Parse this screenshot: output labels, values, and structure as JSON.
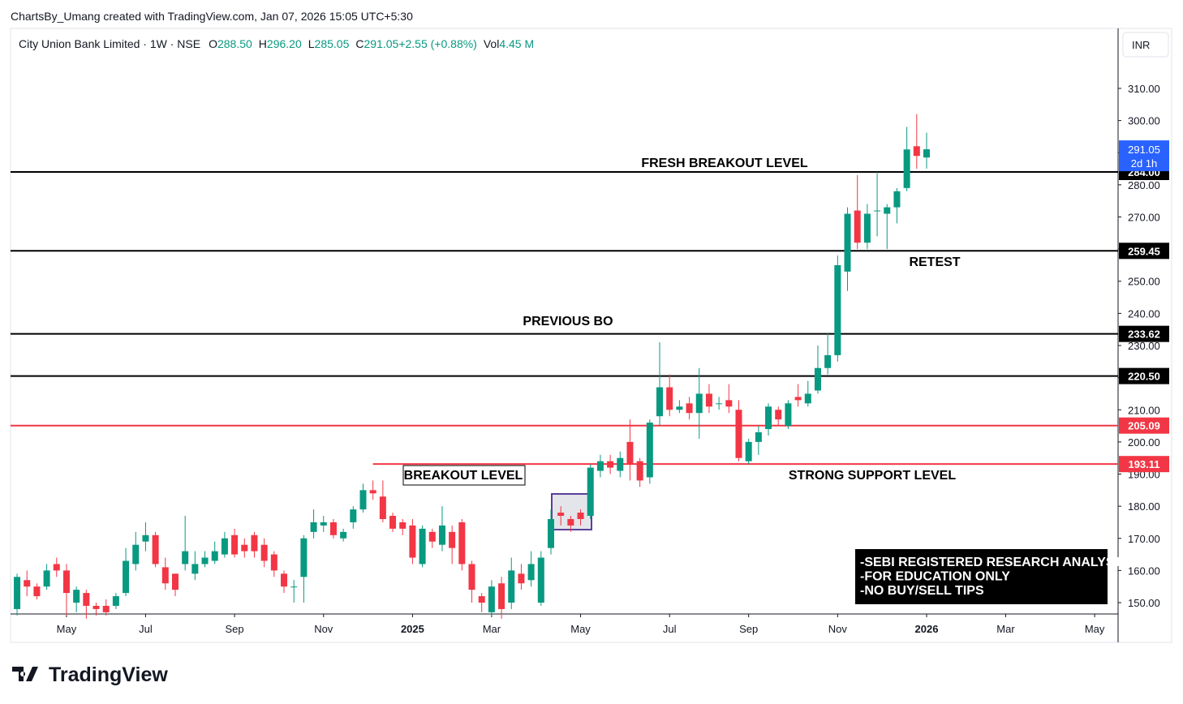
{
  "header": {
    "credit": "ChartsBy_Umang created with TradingView.com, Jan 07, 2026 15:05 UTC+5:30"
  },
  "legend": {
    "symbol": "City Union Bank Limited · 1W · NSE",
    "items": [
      {
        "key": "O",
        "value": "288.50"
      },
      {
        "key": "H",
        "value": "296.20"
      },
      {
        "key": "L",
        "value": "285.05"
      },
      {
        "key": "C",
        "value": "291.05"
      },
      {
        "key": "",
        "value": "+2.55 (+0.88%)"
      },
      {
        "key": "Vol",
        "value": "4.45 M"
      }
    ]
  },
  "currency": "INR",
  "footer": {
    "brand": "TradingView"
  },
  "chart_data": {
    "type": "candlestick",
    "up_color": "#089981",
    "down_color": "#f23645",
    "xlim": [
      -0.66,
      111.37
    ],
    "xticks": [
      {
        "value": 5,
        "label": "May"
      },
      {
        "value": 13,
        "label": "Jul"
      },
      {
        "value": 22,
        "label": "Sep"
      },
      {
        "value": 31,
        "label": "Nov"
      },
      {
        "value": 40,
        "label": "2025"
      },
      {
        "value": 48,
        "label": "Mar"
      },
      {
        "value": 57,
        "label": "May"
      },
      {
        "value": 66,
        "label": "Jul"
      },
      {
        "value": 74,
        "label": "Sep"
      },
      {
        "value": 83,
        "label": "Nov"
      },
      {
        "value": 92,
        "label": "2026"
      },
      {
        "value": 100,
        "label": "Mar"
      },
      {
        "value": 109,
        "label": "May"
      }
    ],
    "ylim": [
      146.47,
      328.67
    ],
    "yticks": [
      {
        "value": 150,
        "label": "150.00"
      },
      {
        "value": 160,
        "label": "160.00"
      },
      {
        "value": 170,
        "label": "170.00"
      },
      {
        "value": 180,
        "label": "180.00"
      },
      {
        "value": 190,
        "label": "190.00"
      },
      {
        "value": 200,
        "label": "200.00"
      },
      {
        "value": 210,
        "label": "210.00"
      },
      {
        "value": 220,
        "label": "220.00"
      },
      {
        "value": 230,
        "label": "230.00"
      },
      {
        "value": 240,
        "label": "240.00"
      },
      {
        "value": 250,
        "label": "250.00"
      },
      {
        "value": 260,
        "label": "260.00"
      },
      {
        "value": 270,
        "label": "270.00"
      },
      {
        "value": 280,
        "label": "280.00"
      },
      {
        "value": 290,
        "label": "290.00"
      },
      {
        "value": 300,
        "label": "300.00"
      },
      {
        "value": 310,
        "label": "310.00"
      }
    ],
    "open": [
      148,
      157,
      155,
      155,
      162,
      160,
      150,
      153,
      149,
      149,
      149,
      153,
      162,
      169,
      171,
      161,
      159,
      162,
      159,
      162,
      163,
      165,
      171,
      168,
      171,
      168,
      165,
      159,
      155,
      158,
      172,
      174,
      175,
      170,
      175,
      179,
      185,
      183,
      177,
      175,
      174,
      162,
      172,
      168,
      172,
      175,
      162,
      152,
      147,
      156,
      150,
      159,
      157,
      150,
      167,
      178,
      176,
      178,
      177,
      191,
      194,
      191,
      200,
      194,
      189,
      208,
      217,
      210,
      212,
      209,
      215,
      212,
      213,
      210,
      194,
      200,
      204,
      210,
      205,
      214,
      212,
      216,
      223,
      227,
      253,
      272,
      262,
      272,
      271,
      273,
      279,
      292,
      288.5
    ],
    "high": [
      159,
      160,
      156,
      162,
      164,
      162,
      155,
      154,
      150,
      151,
      153,
      167,
      172,
      175,
      172,
      164,
      159,
      177,
      166,
      166,
      169,
      172,
      173,
      170,
      172,
      170,
      166,
      160,
      157,
      171,
      179,
      177,
      176,
      173,
      180,
      187,
      188,
      188,
      178,
      176,
      176,
      174,
      173,
      180,
      174,
      176,
      163,
      153,
      157,
      158,
      164,
      162,
      166,
      166,
      179,
      180,
      177,
      179,
      193,
      196,
      196,
      197,
      207,
      195,
      207,
      231,
      221,
      213,
      214,
      223,
      218,
      214,
      218,
      213,
      201,
      205,
      212,
      211,
      213,
      218,
      219,
      230,
      234,
      258,
      273,
      283,
      274,
      284,
      274,
      279,
      298,
      302,
      296.2
    ],
    "low": [
      146,
      152,
      151,
      154,
      158,
      146,
      147,
      145,
      146,
      146,
      148,
      152,
      160,
      166,
      161,
      154,
      152,
      160,
      157,
      161,
      162,
      164,
      164,
      164,
      164,
      161,
      158,
      153,
      150,
      150,
      170,
      172,
      170,
      169,
      173,
      178,
      182,
      175,
      172,
      171,
      162,
      161,
      167,
      166,
      162,
      160,
      150,
      147,
      146,
      145,
      148,
      154,
      155,
      149,
      165,
      174,
      172,
      174,
      176,
      189,
      190,
      189,
      188,
      186,
      187,
      205,
      208,
      209,
      207,
      201,
      209,
      210,
      209,
      194,
      193,
      196,
      202,
      205,
      204,
      211,
      211,
      215,
      221,
      225,
      247,
      260,
      260,
      264,
      260,
      268,
      278,
      285,
      285.05
    ],
    "close": [
      158,
      155,
      152,
      160,
      160,
      153,
      154,
      149,
      148,
      147,
      152,
      163,
      168,
      171,
      162,
      156,
      154,
      166,
      162,
      164,
      166,
      170,
      165,
      166,
      166,
      163,
      160,
      155,
      155,
      170,
      175,
      175,
      171,
      172,
      179,
      185,
      184,
      176,
      173,
      173,
      164,
      173,
      169,
      174,
      167,
      162,
      154,
      150,
      155,
      148,
      160,
      156,
      162,
      164,
      176,
      177,
      174,
      176,
      192,
      194,
      192,
      195,
      193,
      188,
      206,
      217,
      210,
      211,
      209,
      215,
      211,
      212,
      211,
      195,
      200,
      203,
      211,
      207,
      212,
      213,
      215,
      223,
      227,
      255,
      271,
      262,
      271,
      272,
      273,
      278,
      291,
      289,
      291.05
    ],
    "levels": [
      {
        "value": 284.0,
        "label": "284.00",
        "color": "#000000",
        "from": -0.66
      },
      {
        "value": 259.45,
        "label": "259.45",
        "color": "#000000",
        "from": -0.66
      },
      {
        "value": 233.62,
        "label": "233.62",
        "color": "#000000",
        "from": -0.66
      },
      {
        "value": 220.5,
        "label": "220.50",
        "color": "#000000",
        "from": -0.66
      },
      {
        "value": 205.09,
        "label": "205.09",
        "color": "#f23645",
        "from": -0.66
      },
      {
        "value": 193.11,
        "label": "193.11",
        "color": "#f23645",
        "from": 36
      }
    ],
    "last_price": {
      "value": 291.05,
      "label": "291.05",
      "countdown": "2d 1h",
      "color": "#2962ff"
    },
    "annotations": [
      "FRESH BREAKOUT LEVEL",
      "RETEST",
      "PREVIOUS BO",
      "BREAKOUT LEVEL",
      "STRONG SUPPORT LEVEL"
    ],
    "note": [
      "-SEBI REGISTERED RESEARCH ANALYST",
      "-FOR EDUCATION ONLY",
      "-NO BUY/SELL TIPS"
    ]
  }
}
